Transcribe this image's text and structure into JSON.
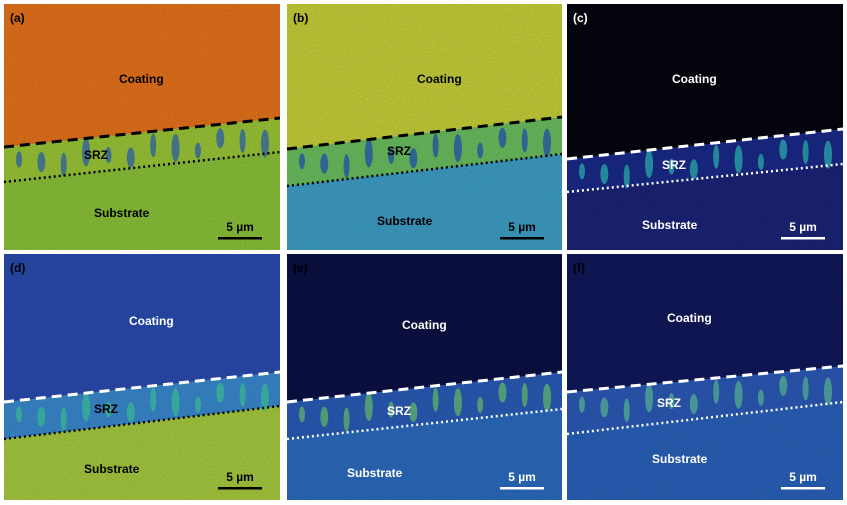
{
  "panels": [
    {
      "label": "(a)",
      "coating": "Coating",
      "srz": "SRZ",
      "substrate": "Substrate",
      "scale": "5 µm"
    },
    {
      "label": "(b)",
      "coating": "Coating",
      "srz": "SRZ",
      "substrate": "Substrate",
      "scale": "5 µm"
    },
    {
      "label": "(c)",
      "coating": "Coating",
      "srz": "SRZ",
      "substrate": "Substrate",
      "scale": "5 µm"
    },
    {
      "label": "(d)",
      "coating": "Coating",
      "srz": "SRZ",
      "substrate": "Substrate",
      "scale": "5 µm"
    },
    {
      "label": "(e)",
      "coating": "Coating",
      "srz": "SRZ",
      "substrate": "Substrate",
      "scale": "5 µm"
    },
    {
      "label": "(f)",
      "coating": "Coating",
      "srz": "SRZ",
      "substrate": "Substrate",
      "scale": "5 µm"
    }
  ]
}
